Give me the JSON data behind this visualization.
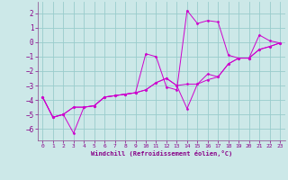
{
  "xlabel": "Windchill (Refroidissement éolien,°C)",
  "xlim": [
    -0.5,
    23.5
  ],
  "ylim": [
    -6.8,
    2.8
  ],
  "yticks": [
    2,
    1,
    0,
    -1,
    -2,
    -3,
    -4,
    -5,
    -6
  ],
  "xticks": [
    0,
    1,
    2,
    3,
    4,
    5,
    6,
    7,
    8,
    9,
    10,
    11,
    12,
    13,
    14,
    15,
    16,
    17,
    18,
    19,
    20,
    21,
    22,
    23
  ],
  "line_color": "#cc00cc",
  "background_color": "#cce8e8",
  "grid_color": "#99cccc",
  "lines": [
    {
      "x": [
        0,
        1,
        2,
        3,
        4,
        5,
        6,
        7,
        8,
        9,
        10,
        11,
        12,
        13,
        14,
        15,
        16,
        17,
        18,
        19,
        20,
        21,
        22,
        23
      ],
      "y": [
        -3.8,
        -5.2,
        -5.0,
        -6.3,
        -4.5,
        -4.4,
        -3.8,
        -3.7,
        -3.6,
        -3.5,
        -0.8,
        -1.0,
        -3.1,
        -3.3,
        2.2,
        1.3,
        1.5,
        1.4,
        -0.9,
        -1.1,
        -1.1,
        0.5,
        0.1,
        -0.05
      ]
    },
    {
      "x": [
        0,
        1,
        2,
        3,
        4,
        5,
        6,
        7,
        8,
        9,
        10,
        11,
        12,
        13,
        14,
        15,
        16,
        17,
        18,
        19,
        20,
        21,
        22,
        23
      ],
      "y": [
        -3.8,
        -5.2,
        -5.0,
        -4.5,
        -4.5,
        -4.4,
        -3.8,
        -3.7,
        -3.6,
        -3.5,
        -3.3,
        -2.8,
        -2.5,
        -3.0,
        -4.6,
        -2.9,
        -2.6,
        -2.4,
        -1.5,
        -1.1,
        -1.1,
        -0.5,
        -0.3,
        -0.05
      ]
    },
    {
      "x": [
        0,
        1,
        2,
        3,
        4,
        5,
        6,
        7,
        8,
        9,
        10,
        11,
        12,
        13,
        14,
        15,
        16,
        17,
        18,
        19,
        20,
        21,
        22,
        23
      ],
      "y": [
        -3.8,
        -5.2,
        -5.0,
        -4.5,
        -4.5,
        -4.4,
        -3.8,
        -3.7,
        -3.6,
        -3.5,
        -3.3,
        -2.8,
        -2.5,
        -3.0,
        -2.9,
        -2.9,
        -2.2,
        -2.4,
        -1.5,
        -1.1,
        -1.1,
        -0.5,
        -0.3,
        -0.05
      ]
    }
  ]
}
